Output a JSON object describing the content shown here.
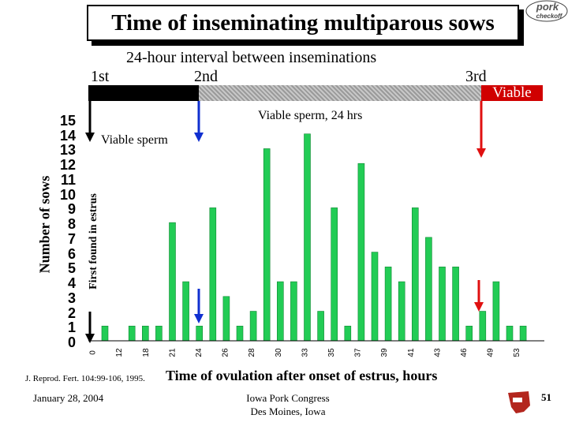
{
  "slide": {
    "title": "Time of inseminating multiparous sows",
    "logo_text": "pork checkoff",
    "interval_text": "24-hour interval between inseminations",
    "first_label": "1st",
    "second_label": "2nd",
    "third_label": "3rd",
    "viable_bar_label": "Viable",
    "viable_24_text": "Viable sperm, 24 hrs",
    "viable_sperm_text": "Viable sperm",
    "citation": "J. Reprod. Fert. 104:99-106, 1995.",
    "date": "January 28, 2004",
    "congress_line1": "Iowa Pork Congress",
    "congress_line2": "Des Moines, Iowa",
    "page_number": "51"
  },
  "colors": {
    "bar": "#22cc55",
    "arrow_blue": "#1030d0",
    "arrow_red": "#e01010",
    "viable_red": "#d00000"
  },
  "chart_data": {
    "type": "bar",
    "ylabel": "Number of sows",
    "ylabel_inner": "First found in estrus",
    "xlabel": "Time of ovulation after onset of estrus, hours",
    "ylim": [
      0,
      15
    ],
    "yticks": [
      0,
      1,
      2,
      3,
      4,
      5,
      6,
      7,
      8,
      9,
      10,
      11,
      12,
      13,
      14,
      15
    ],
    "xtick_labels": [
      "0",
      "12",
      "18",
      "21",
      "24",
      "26",
      "28",
      "30",
      "33",
      "35",
      "37",
      "39",
      "41",
      "43",
      "46",
      "49",
      "53"
    ],
    "values": [
      1,
      0,
      1,
      1,
      1,
      8,
      4,
      1,
      9,
      3,
      1,
      2,
      13,
      4,
      4,
      14,
      2,
      9,
      1,
      12,
      6,
      5,
      4,
      9,
      7,
      5,
      5,
      1,
      2,
      4,
      1,
      1
    ],
    "grid": false,
    "legend": "none"
  }
}
